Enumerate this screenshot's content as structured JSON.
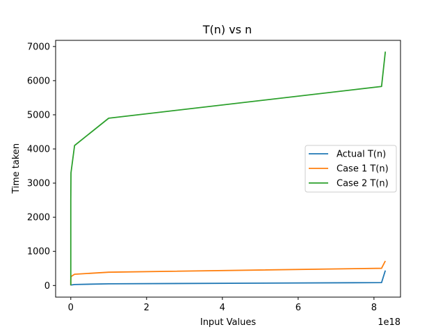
{
  "chart_data": {
    "type": "line",
    "title": "T(n) vs n",
    "xlabel": "Input Values",
    "ylabel": "Time taken",
    "x_offset_text": "1e18",
    "xlim": [
      -0.4,
      8.7
    ],
    "ylim": [
      -340,
      7180
    ],
    "x_ticks": [
      0,
      2,
      4,
      6,
      8
    ],
    "y_ticks": [
      0,
      1000,
      2000,
      3000,
      4000,
      5000,
      6000,
      7000
    ],
    "grid": false,
    "legend_position": "center-right",
    "series": [
      {
        "name": "Actual T(n)",
        "color": "#1f77b4",
        "points": [
          [
            0,
            0
          ],
          [
            0.0001,
            10
          ],
          [
            0.005,
            15
          ],
          [
            0.1,
            30
          ],
          [
            1.0,
            50
          ],
          [
            8.2,
            85
          ],
          [
            8.3,
            440
          ]
        ]
      },
      {
        "name": "Case 1 T(n)",
        "color": "#ff7f0e",
        "points": [
          [
            0,
            10
          ],
          [
            0.0001,
            150
          ],
          [
            0.005,
            260
          ],
          [
            0.1,
            330
          ],
          [
            1.0,
            390
          ],
          [
            8.2,
            505
          ],
          [
            8.3,
            720
          ]
        ]
      },
      {
        "name": "Case 2 T(n)",
        "color": "#2ca02c",
        "points": [
          [
            0,
            10
          ],
          [
            1e-05,
            1500
          ],
          [
            0.0001,
            2500
          ],
          [
            0.005,
            3300
          ],
          [
            0.1,
            4100
          ],
          [
            1.0,
            4900
          ],
          [
            8.2,
            5830
          ],
          [
            8.3,
            6850
          ]
        ]
      }
    ]
  }
}
